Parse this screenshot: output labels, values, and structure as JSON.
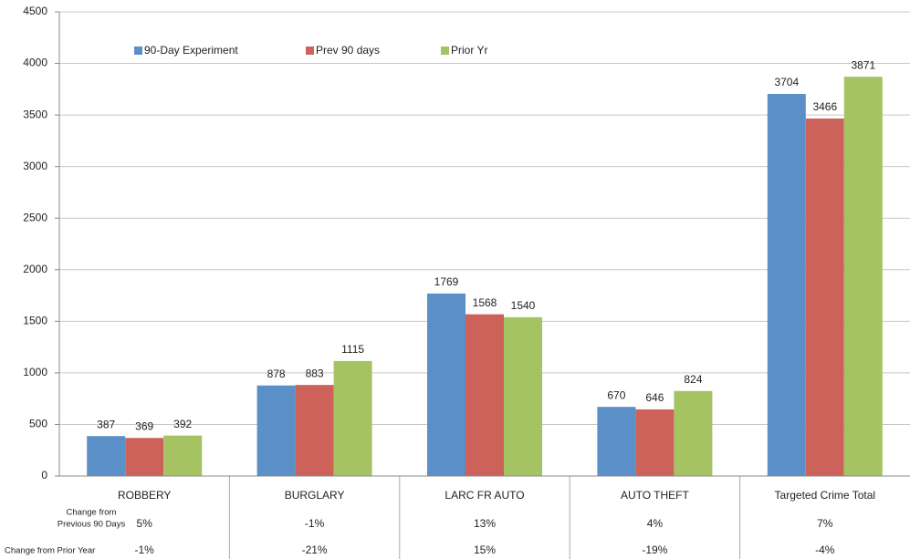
{
  "chart_data": {
    "type": "bar",
    "categories": [
      "ROBBERY",
      "BURGLARY",
      "LARC FR AUTO",
      "AUTO THEFT",
      "Targeted Crime Total"
    ],
    "series": [
      {
        "name": "90-Day Experiment",
        "color": "#5b8fc7",
        "values": [
          387,
          878,
          1769,
          670,
          3704
        ]
      },
      {
        "name": "Prev 90 days",
        "color": "#cd625a",
        "values": [
          369,
          883,
          1568,
          646,
          3466
        ]
      },
      {
        "name": "Prior Yr",
        "color": "#a6c363",
        "values": [
          392,
          1115,
          1540,
          824,
          3871
        ]
      }
    ],
    "ylim": [
      0,
      4500
    ],
    "yticks": [
      0,
      500,
      1000,
      1500,
      2000,
      2500,
      3000,
      3500,
      4000,
      4500
    ],
    "grid": true,
    "table": {
      "rows": [
        {
          "label_lines": [
            "Change from",
            "Previous 90 Days"
          ],
          "values": [
            "5%",
            "-1%",
            "13%",
            "4%",
            "7%"
          ]
        },
        {
          "label_lines": [
            "Change from Prior Year"
          ],
          "values": [
            "-1%",
            "-21%",
            "15%",
            "-19%",
            "-4%"
          ]
        }
      ]
    }
  }
}
